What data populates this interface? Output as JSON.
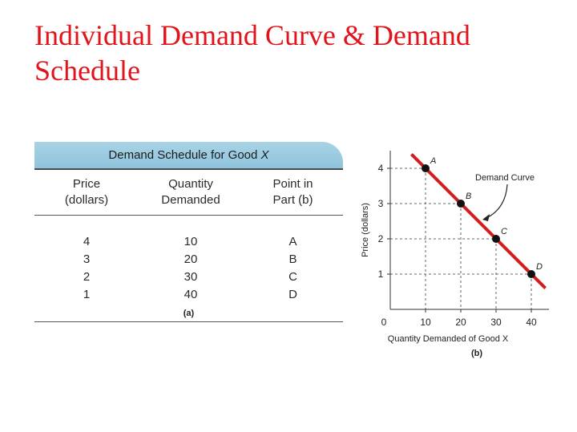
{
  "title": "Individual Demand Curve & Demand Schedule",
  "table": {
    "heading": "Demand Schedule for Good X",
    "columns": [
      {
        "line1": "Price",
        "line2": "(dollars)"
      },
      {
        "line1": "Quantity",
        "line2": "Demanded"
      },
      {
        "line1": "Point in",
        "line2": "Part (b)"
      }
    ],
    "rows": [
      {
        "price": "4",
        "quantity": "10",
        "point": "A"
      },
      {
        "price": "3",
        "quantity": "20",
        "point": "B"
      },
      {
        "price": "2",
        "quantity": "30",
        "point": "C"
      },
      {
        "price": "1",
        "quantity": "40",
        "point": "D"
      }
    ],
    "caption": "(a)"
  },
  "chart_data": {
    "type": "line",
    "xlabel": "Quantity Demanded of Good X",
    "ylabel": "Price (dollars)",
    "caption": "(b)",
    "xlim": [
      0,
      45
    ],
    "ylim": [
      0,
      4.5
    ],
    "x_ticks": [
      10,
      20,
      30,
      40
    ],
    "y_ticks": [
      1,
      2,
      3,
      4
    ],
    "origin_label": "0",
    "curve_label": "Demand Curve",
    "series": [
      {
        "points": [
          {
            "label": "A",
            "x": 10,
            "y": 4
          },
          {
            "label": "B",
            "x": 20,
            "y": 3
          },
          {
            "label": "C",
            "x": 30,
            "y": 2
          },
          {
            "label": "D",
            "x": 40,
            "y": 1
          }
        ],
        "color": "#d01f1f"
      }
    ],
    "guide_lines": "dashed",
    "grid": false
  }
}
